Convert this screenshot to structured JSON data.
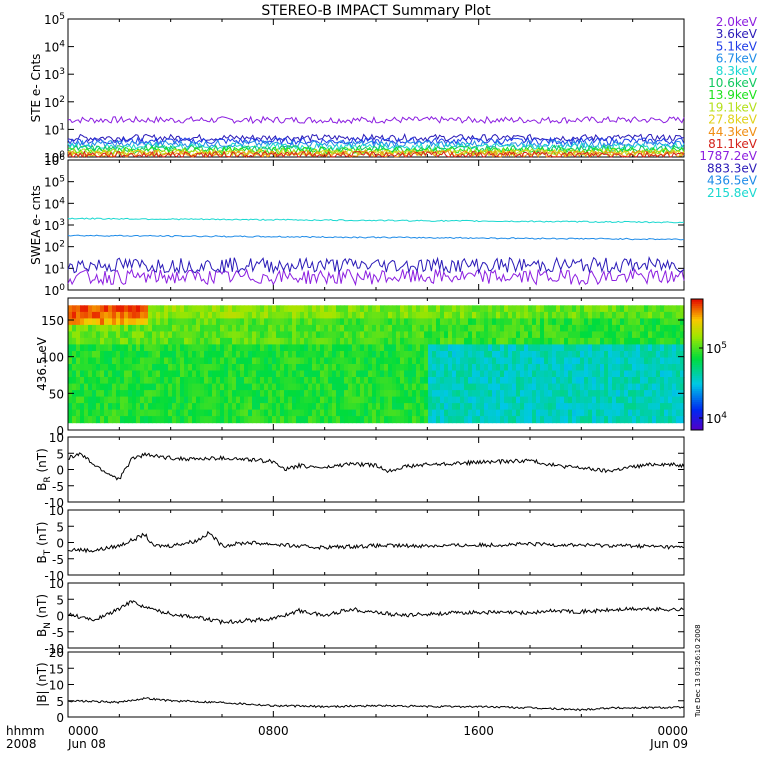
{
  "chart_data": {
    "type": "line",
    "title": "STEREO-B IMPACT Summary Plot",
    "x_tick_labels": [
      "0000",
      "0800",
      "1600",
      "0000"
    ],
    "x_date_labels": {
      "start": "Jun 08",
      "end": "Jun 09"
    },
    "x_axis_header": [
      "hhmm",
      "2008"
    ],
    "x_range_hours": [
      0,
      24
    ],
    "panels": [
      {
        "id": "ste",
        "ylabel": "STE e- Cnts",
        "scale": "log",
        "ylim": [
          1,
          100000
        ],
        "y_tick_labels": [
          "10^0",
          "10^1",
          "10^2",
          "10^3",
          "10^4",
          "10^5"
        ],
        "series": [
          {
            "name": "2.0keV",
            "color": "#8c1ee0",
            "level": 22
          },
          {
            "name": "3.6keV",
            "color": "#2a1ab8",
            "level": 5
          },
          {
            "name": "5.1keV",
            "color": "#1f3ce8",
            "level": 3.8
          },
          {
            "name": "6.7keV",
            "color": "#1e8be8",
            "level": 3
          },
          {
            "name": "8.3keV",
            "color": "#1ad8d0",
            "level": 2.4
          },
          {
            "name": "10.6keV",
            "color": "#12c860",
            "level": 2
          },
          {
            "name": "13.9keV",
            "color": "#1ce21c",
            "level": 1.7
          },
          {
            "name": "19.1keV",
            "color": "#b4e01a",
            "level": 1.5
          },
          {
            "name": "27.8keV",
            "color": "#e0d21a",
            "level": 1.4
          },
          {
            "name": "44.3keV",
            "color": "#f08e14",
            "level": 1.3
          },
          {
            "name": "81.1keV",
            "color": "#d4221a",
            "level": 1.2
          }
        ]
      },
      {
        "id": "swea",
        "ylabel": "SWEA e- cnts",
        "scale": "log",
        "ylim": [
          1,
          1000000
        ],
        "y_tick_labels": [
          "10^0",
          "10^1",
          "10^2",
          "10^3",
          "10^4",
          "10^5",
          "10^6"
        ],
        "series": [
          {
            "name": "1787.2eV",
            "color": "#8c1ee0",
            "level": 4
          },
          {
            "name": "883.3eV",
            "color": "#2a1ab8",
            "level": 14
          },
          {
            "name": "436.5eV",
            "color": "#1e8be8",
            "level": 330
          },
          {
            "name": "215.8eV",
            "color": "#1ad8d0",
            "level": 2000
          }
        ]
      },
      {
        "id": "pad",
        "ylabel": "436.5 eV",
        "type": "heatmap",
        "ylim": [
          0,
          180
        ],
        "y_tick_labels": [
          "0",
          "50",
          "100",
          "150"
        ],
        "colorbar_tick_labels": [
          "10^4",
          "10^5"
        ]
      },
      {
        "id": "br",
        "ylabel": "B",
        "ylabel_sub": "R",
        "ylabel_unit": "(nT)",
        "ylim": [
          -10,
          10
        ],
        "y_tick_labels": [
          "-10",
          "-5",
          "0",
          "5",
          "10"
        ],
        "values": [
          [
            0,
            3.5
          ],
          [
            0.5,
            4.8
          ],
          [
            1,
            1.5
          ],
          [
            1.5,
            -1
          ],
          [
            2,
            -3
          ],
          [
            2.5,
            3.5
          ],
          [
            3,
            4.5
          ],
          [
            4,
            3.5
          ],
          [
            5,
            3.2
          ],
          [
            6,
            3.5
          ],
          [
            7,
            3
          ],
          [
            8,
            2.5
          ],
          [
            8.5,
            0
          ],
          [
            9,
            1.2
          ],
          [
            10,
            0.5
          ],
          [
            11,
            1.8
          ],
          [
            12,
            1.2
          ],
          [
            12.5,
            -0.5
          ],
          [
            13,
            0.8
          ],
          [
            14,
            1.5
          ],
          [
            16,
            2.2
          ],
          [
            18,
            2.8
          ],
          [
            19,
            1.2
          ],
          [
            20,
            0.5
          ],
          [
            21,
            -0.5
          ],
          [
            22,
            0.8
          ],
          [
            23,
            1.8
          ],
          [
            24,
            1.2
          ]
        ]
      },
      {
        "id": "bt",
        "ylabel": "B",
        "ylabel_sub": "T",
        "ylabel_unit": "(nT)",
        "ylim": [
          -10,
          10
        ],
        "y_tick_labels": [
          "-10",
          "-5",
          "0",
          "5",
          "10"
        ],
        "values": [
          [
            0,
            -2
          ],
          [
            1,
            -2.5
          ],
          [
            2,
            -1
          ],
          [
            3,
            2.5
          ],
          [
            3.3,
            -1
          ],
          [
            4,
            -1
          ],
          [
            5,
            0.5
          ],
          [
            5.5,
            3
          ],
          [
            6,
            -1
          ],
          [
            7,
            0
          ],
          [
            8,
            -0.5
          ],
          [
            9,
            -1.2
          ],
          [
            10,
            -1.5
          ],
          [
            11,
            -1.2
          ],
          [
            12,
            -1
          ],
          [
            14,
            -1
          ],
          [
            16,
            -0.8
          ],
          [
            18,
            -0.5
          ],
          [
            20,
            -0.8
          ],
          [
            22,
            -1
          ],
          [
            24,
            -1.5
          ]
        ]
      },
      {
        "id": "bn",
        "ylabel": "B",
        "ylabel_sub": "N",
        "ylabel_unit": "(nT)",
        "ylim": [
          -10,
          10
        ],
        "y_tick_labels": [
          "-10",
          "-5",
          "0",
          "5",
          "10"
        ],
        "values": [
          [
            0,
            0.5
          ],
          [
            1,
            -1.5
          ],
          [
            2,
            2
          ],
          [
            2.5,
            4.5
          ],
          [
            3,
            2.5
          ],
          [
            4,
            0.5
          ],
          [
            5,
            -0.5
          ],
          [
            6,
            -2
          ],
          [
            7,
            -1.5
          ],
          [
            8,
            -1
          ],
          [
            9,
            1.5
          ],
          [
            10,
            0
          ],
          [
            11,
            2
          ],
          [
            12,
            1
          ],
          [
            13,
            0
          ],
          [
            14,
            0.5
          ],
          [
            16,
            1
          ],
          [
            18,
            0.8
          ],
          [
            19,
            1.5
          ],
          [
            20,
            1.2
          ],
          [
            22,
            2
          ],
          [
            24,
            1.8
          ]
        ]
      },
      {
        "id": "bmag",
        "ylabel": "|B| (nT)",
        "ylim": [
          0,
          20
        ],
        "y_tick_labels": [
          "0",
          "5",
          "10",
          "15",
          "20"
        ],
        "values": [
          [
            0,
            5
          ],
          [
            2,
            4.5
          ],
          [
            3,
            5.8
          ],
          [
            4,
            5
          ],
          [
            6,
            4.5
          ],
          [
            8,
            3.5
          ],
          [
            10,
            3.2
          ],
          [
            12,
            3.5
          ],
          [
            14,
            3.2
          ],
          [
            16,
            3.2
          ],
          [
            18,
            2.8
          ],
          [
            19,
            2.5
          ],
          [
            20,
            2.2
          ],
          [
            21,
            2.8
          ],
          [
            22,
            2.8
          ],
          [
            24,
            3
          ]
        ]
      }
    ],
    "timestamp_text": "Tue Dec 13 03:26:10 2008"
  }
}
